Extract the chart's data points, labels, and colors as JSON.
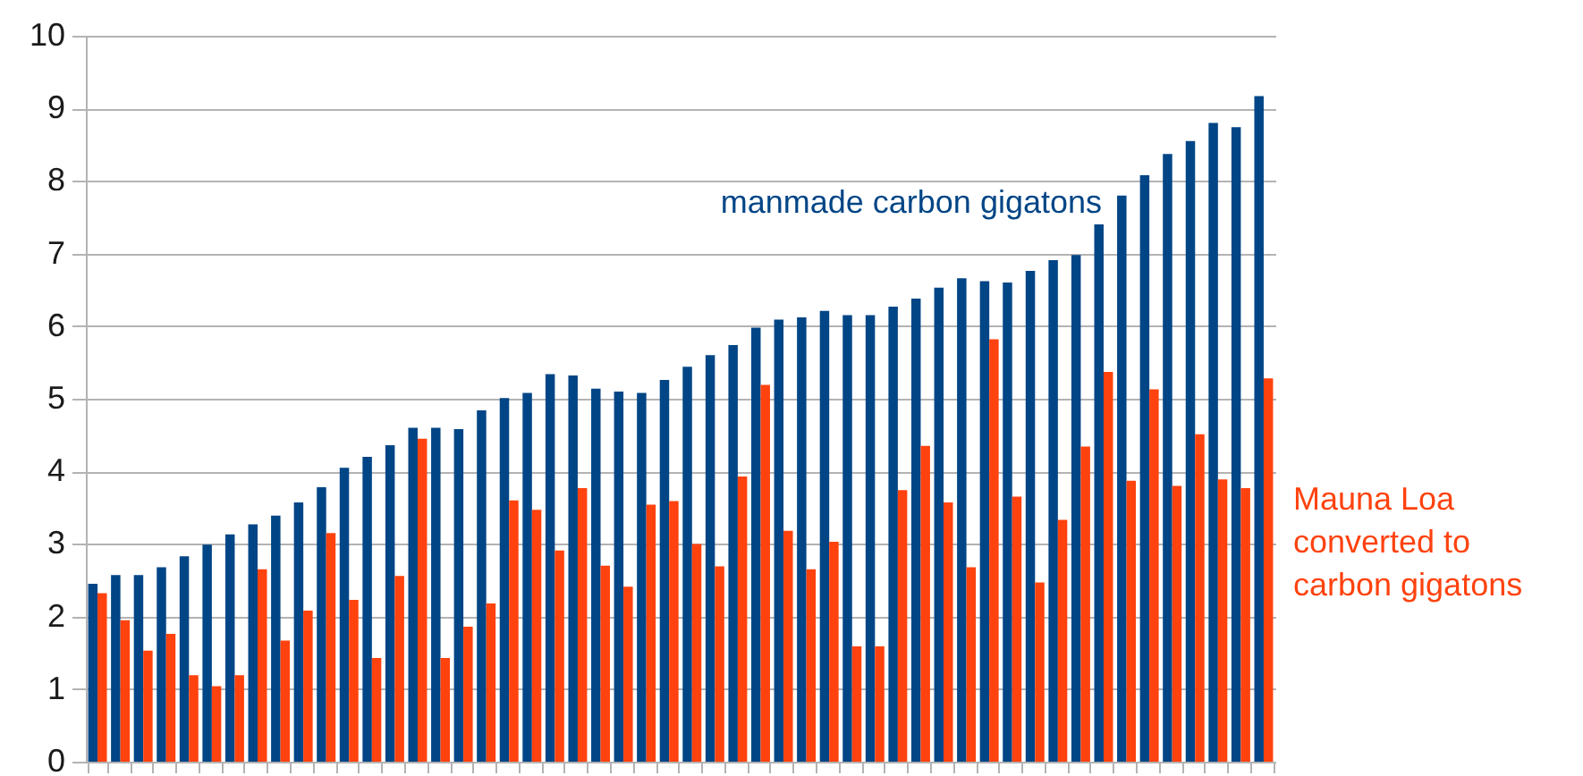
{
  "chart_data": {
    "type": "bar",
    "categories": [
      null,
      null,
      null,
      null,
      null,
      null,
      null,
      null,
      null,
      null,
      null,
      null,
      null,
      null,
      null,
      null,
      null,
      null,
      null,
      null,
      null,
      null,
      null,
      null,
      null,
      null,
      null,
      null,
      null,
      null,
      null,
      null,
      null,
      null,
      null,
      null,
      null,
      null,
      null,
      null,
      null,
      null,
      null,
      null,
      null,
      null,
      null,
      null,
      null,
      null,
      null,
      null
    ],
    "series": [
      {
        "name": "manmade carbon gigatons",
        "color": "#004586",
        "values": [
          2.45,
          2.57,
          2.57,
          2.68,
          2.83,
          2.99,
          3.13,
          3.27,
          3.39,
          3.57,
          3.78,
          4.05,
          4.2,
          4.36,
          4.6,
          4.6,
          4.58,
          4.84,
          5.01,
          5.08,
          5.34,
          5.32,
          5.14,
          5.1,
          5.08,
          5.26,
          5.44,
          5.6,
          5.74,
          5.98,
          6.09,
          6.12,
          6.21,
          6.15,
          6.15,
          6.27,
          6.38,
          6.53,
          6.66,
          6.62,
          6.6,
          6.76,
          6.91,
          6.98,
          7.4,
          7.8,
          8.08,
          8.37,
          8.55,
          8.8,
          8.74,
          9.17
        ]
      },
      {
        "name": "Mauna Loa converted to carbon gigatons",
        "color": "#ff420e",
        "values": [
          2.32,
          1.95,
          1.53,
          1.76,
          1.19,
          1.04,
          1.19,
          2.65,
          1.67,
          2.08,
          3.15,
          2.23,
          1.43,
          2.56,
          4.45,
          1.43,
          1.86,
          2.18,
          3.6,
          3.47,
          2.91,
          3.77,
          2.7,
          2.41,
          3.54,
          3.59,
          3.0,
          2.69,
          3.93,
          5.19,
          3.18,
          2.65,
          3.03,
          1.59,
          1.59,
          3.74,
          4.35,
          3.57,
          2.68,
          5.82,
          3.65,
          2.47,
          3.33,
          4.34,
          5.37,
          3.87,
          5.13,
          3.8,
          4.51,
          3.89,
          3.77,
          5.28
        ]
      }
    ],
    "ylim": [
      0,
      10
    ],
    "yticks": [
      0,
      1,
      2,
      3,
      4,
      5,
      6,
      7,
      8,
      9,
      10
    ],
    "grid": "y",
    "tick_labels": "y"
  }
}
